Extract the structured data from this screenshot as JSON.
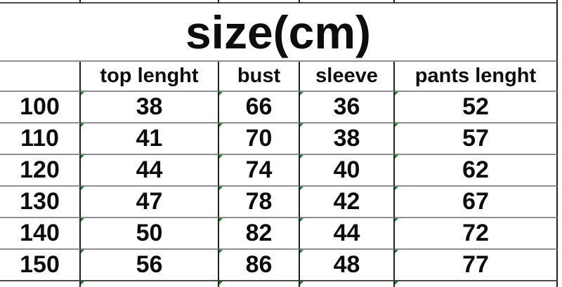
{
  "chart_data": {
    "type": "table",
    "title": "size(cm)",
    "columns": [
      "",
      "top lenght",
      "bust",
      "sleeve",
      "pants lenght"
    ],
    "rows": [
      [
        100,
        38,
        66,
        36,
        52
      ],
      [
        110,
        41,
        70,
        38,
        57
      ],
      [
        120,
        44,
        74,
        40,
        62
      ],
      [
        130,
        47,
        78,
        42,
        67
      ],
      [
        140,
        50,
        82,
        44,
        72
      ],
      [
        150,
        56,
        86,
        48,
        77
      ]
    ],
    "layout_hints": {
      "title_merged_across_all_columns": true,
      "first_column_is_size_label": true,
      "partial_cutoff_rows_top_and_bottom": true,
      "green_error_flags_on_numeric_cells": true
    }
  },
  "colors": {
    "vertical_border": "#202020",
    "horizontal_border": "#8f8f8f",
    "outer_border": "#4a4a4a",
    "flag_green": "#267d32",
    "text": "#0d0d0d",
    "background": "#ffffff"
  }
}
